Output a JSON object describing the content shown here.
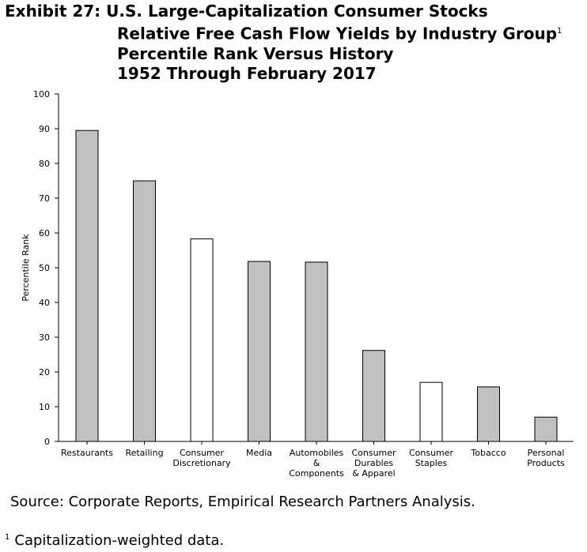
{
  "title": {
    "lines": [
      "Exhibit 27: U.S. Large-Capitalization Consumer Stocks",
      "Relative Free Cash Flow Yields by Industry Group",
      "Percentile Rank Versus History",
      "1952 Through February 2017"
    ],
    "footnote_marker": "1"
  },
  "source": "Source: Corporate Reports, Empirical Research Partners Analysis.",
  "footnote": {
    "marker": "1",
    "text": "Capitalization-weighted data."
  },
  "chart_data": {
    "type": "bar",
    "title": "",
    "xlabel": "",
    "ylabel": "Percentile Rank",
    "ylim": [
      0,
      100
    ],
    "yticks": [
      0,
      10,
      20,
      30,
      40,
      50,
      60,
      70,
      80,
      90,
      100
    ],
    "grid": false,
    "categories": [
      [
        "Restaurants"
      ],
      [
        "Retailing"
      ],
      [
        "Consumer",
        "Discretionary"
      ],
      [
        "Media"
      ],
      [
        "Automobiles",
        "&",
        "Components"
      ],
      [
        "Consumer",
        "Durables",
        "& Apparel"
      ],
      [
        "Consumer",
        "Staples"
      ],
      [
        "Tobacco"
      ],
      [
        "Personal",
        "Products"
      ]
    ],
    "values": [
      89.5,
      75,
      58.3,
      51.8,
      51.6,
      26.2,
      17,
      15.7,
      7
    ],
    "bar_fill": [
      "#c0c0c0",
      "#c0c0c0",
      "#ffffff",
      "#c0c0c0",
      "#c0c0c0",
      "#c0c0c0",
      "#ffffff",
      "#c0c0c0",
      "#c0c0c0"
    ],
    "bar_stroke": "#000000",
    "axis_color": "#000000"
  }
}
